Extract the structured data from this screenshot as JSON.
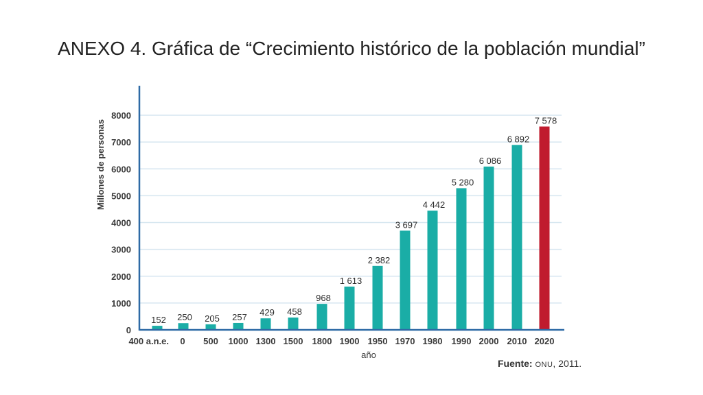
{
  "page": {
    "title": "ANEXO 4. Gráfica de “Crecimiento histórico de la población mundial”"
  },
  "chart_data": {
    "type": "bar",
    "title": "ANEXO 4. Gráfica de “Crecimiento histórico de la población mundial”",
    "xlabel": "año",
    "ylabel": "Millones de personas",
    "ylim": [
      0,
      8000
    ],
    "yticks": [
      0,
      1000,
      2000,
      3000,
      4000,
      5000,
      6000,
      7000,
      8000
    ],
    "grid": true,
    "categories": [
      "400 a.n.e.",
      "0",
      "500",
      "1000",
      "1300",
      "1500",
      "1800",
      "1900",
      "1950",
      "1970",
      "1980",
      "1990",
      "2000",
      "2010",
      "2020"
    ],
    "values": [
      152,
      250,
      205,
      257,
      429,
      458,
      968,
      1613,
      2382,
      3697,
      4442,
      5280,
      6086,
      6892,
      7578
    ],
    "value_labels": [
      "152",
      "250",
      "205",
      "257",
      "429",
      "458",
      "968",
      "1 613",
      "2 382",
      "3 697",
      "4 442",
      "5 280",
      "6 086",
      "6 892",
      "7 578"
    ],
    "highlighted": [
      "2020"
    ],
    "colors": {
      "bar": "#1aada6",
      "highlight": "#c01b2e",
      "axis": "#2e6aa6",
      "grid": "#d6e6f0"
    },
    "source": {
      "label": "Fuente:",
      "org": "ONU",
      "year": ", 2011."
    }
  }
}
